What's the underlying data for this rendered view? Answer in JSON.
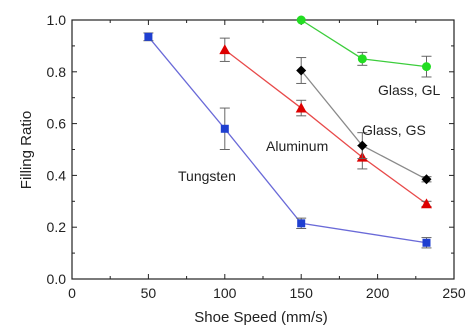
{
  "chart_data": {
    "type": "line",
    "xlabel": "Shoe Speed (mm/s)",
    "ylabel": "Filling Ratio",
    "xlim": [
      0,
      250
    ],
    "ylim": [
      0.0,
      1.0
    ],
    "xticks": [
      0,
      50,
      100,
      150,
      200,
      250
    ],
    "yticks": [
      0.0,
      0.2,
      0.4,
      0.6,
      0.8,
      1.0
    ],
    "xtick_labels": [
      "0",
      "50",
      "100",
      "150",
      "200",
      "250"
    ],
    "ytick_labels": [
      "0.0",
      "0.2",
      "0.4",
      "0.6",
      "0.8",
      "1.0"
    ],
    "grid": false,
    "series": [
      {
        "name": "Tungsten",
        "color": "#6a6ad8",
        "marker_color": "#1f3fd0",
        "marker": "square",
        "x": [
          50,
          100,
          150,
          232
        ],
        "y": [
          0.935,
          0.58,
          0.215,
          0.14
        ],
        "err": [
          0.015,
          0.08,
          0.02,
          0.02
        ]
      },
      {
        "name": "Aluminum",
        "color": "#e84a4a",
        "marker_color": "#dd0000",
        "marker": "triangle",
        "x": [
          100,
          150,
          190,
          232
        ],
        "y": [
          0.885,
          0.66,
          0.47,
          0.29
        ],
        "err": [
          0.045,
          0.03,
          0.045,
          0.01
        ]
      },
      {
        "name": "Glass, GS",
        "color": "#8a8a8a",
        "marker_color": "#000000",
        "marker": "diamond",
        "x": [
          150,
          190,
          232
        ],
        "y": [
          0.805,
          0.515,
          0.385
        ],
        "err": [
          0.05,
          0.05,
          0.01
        ]
      },
      {
        "name": "Glass, GL",
        "color": "#3ccd3c",
        "marker_color": "#22dd22",
        "marker": "circle",
        "x": [
          150,
          190,
          232
        ],
        "y": [
          1.0,
          0.85,
          0.82
        ],
        "err": [
          0.0,
          0.025,
          0.04
        ]
      }
    ],
    "annotations": [
      {
        "text": "Tungsten",
        "series": "Tungsten"
      },
      {
        "text": "Aluminum",
        "series": "Aluminum"
      },
      {
        "text": "Glass, GS",
        "series": "Glass, GS"
      },
      {
        "text": "Glass, GL",
        "series": "Glass, GL"
      }
    ]
  }
}
